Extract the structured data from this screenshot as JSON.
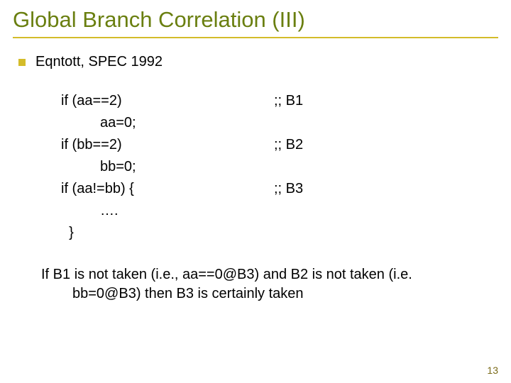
{
  "colors": {
    "title": "#6a7f10",
    "rule": "#d4bc2a",
    "bullet": "#d4bc2a",
    "text": "#000000",
    "pagenum": "#7a6a18"
  },
  "title": "Global Branch Correlation (III)",
  "bullet": "Eqntott, SPEC 1992",
  "code": [
    {
      "left": "if (aa==2)",
      "indent": 1,
      "right": ";; B1"
    },
    {
      "left": "aa=0;",
      "indent": 2,
      "right": ""
    },
    {
      "left": "if (bb==2)",
      "indent": 1,
      "right": ";; B2"
    },
    {
      "left": "bb=0;",
      "indent": 2,
      "right": ""
    },
    {
      "left": "if (aa!=bb) {",
      "indent": 1,
      "right": ";; B3"
    },
    {
      "left": "….",
      "indent": 2,
      "right": ""
    },
    {
      "left": "  }",
      "indent": 1,
      "right": ""
    }
  ],
  "conclusion": "If B1 is not taken (i.e., aa==0@B3) and B2 is not taken (i.e. bb=0@B3) then B3 is certainly taken",
  "pagenum": "13"
}
